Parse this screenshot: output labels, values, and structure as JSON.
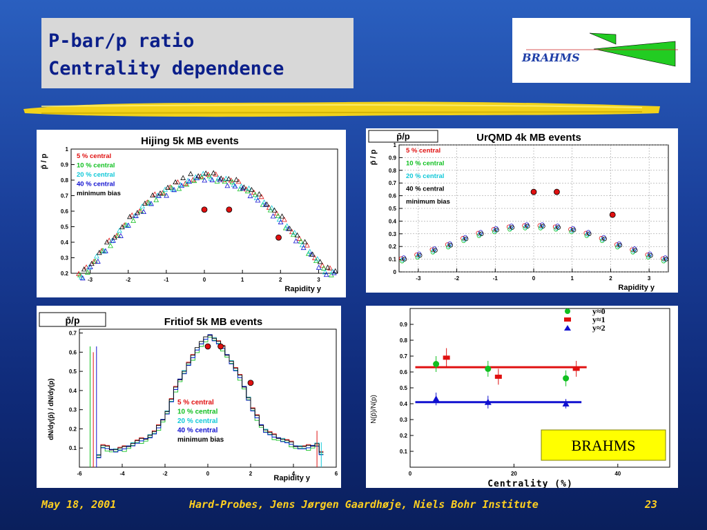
{
  "slide": {
    "title_line1": "P-bar/p ratio",
    "title_line2": "Centrality dependence",
    "logo_text": "BRAHMS",
    "footer_date": "May 18, 2001",
    "footer_center": "Hard-Probes, Jens Jørgen Gaardhøje, Niels Bohr Institute",
    "footer_page": "23"
  },
  "chart_data": [
    {
      "type": "scatter",
      "title": "Hijing 5k MB events",
      "xlabel": "Rapidity y",
      "ylabel": "p̄ / p",
      "xlim": [
        -3.5,
        3.5
      ],
      "ylim": [
        0.2,
        1.0
      ],
      "xticks": [
        -3,
        -2,
        -1,
        0,
        1,
        2,
        3
      ],
      "yticks": [
        0.2,
        0.3,
        0.4,
        0.5,
        0.6,
        0.7,
        0.8,
        0.9,
        1
      ],
      "legend": [
        {
          "name": "5 % central",
          "color": "#e01010"
        },
        {
          "name": "10 % central",
          "color": "#10c020"
        },
        {
          "name": "20 % central",
          "color": "#10c8d8"
        },
        {
          "name": "40 % central",
          "color": "#1010d0"
        },
        {
          "name": "minimum bias",
          "color": "#000000"
        }
      ],
      "curve": {
        "x": [
          -3.2,
          -2.8,
          -2.4,
          -2.0,
          -1.6,
          -1.2,
          -0.8,
          -0.4,
          0.0,
          0.4,
          0.8,
          1.2,
          1.6,
          2.0,
          2.4,
          2.8,
          3.2
        ],
        "y": [
          0.21,
          0.33,
          0.44,
          0.55,
          0.65,
          0.73,
          0.78,
          0.81,
          0.83,
          0.81,
          0.78,
          0.73,
          0.65,
          0.55,
          0.44,
          0.33,
          0.21
        ]
      },
      "brahms": {
        "x": [
          0.0,
          0.65,
          1.95
        ],
        "y": [
          0.61,
          0.61,
          0.43
        ]
      }
    },
    {
      "type": "scatter",
      "title": "UrQMD 4k MB events",
      "label_box": "p̄/p",
      "xlabel": "Rapidity y",
      "ylabel": "p̄ / p",
      "xlim": [
        -3.5,
        3.5
      ],
      "ylim": [
        0,
        1.0
      ],
      "xticks": [
        -3,
        -2,
        -1,
        0,
        1,
        2,
        3
      ],
      "yticks": [
        0,
        0.1,
        0.2,
        0.3,
        0.4,
        0.5,
        0.6,
        0.7,
        0.8,
        0.9,
        1
      ],
      "legend": [
        {
          "name": "5 % central",
          "color": "#e01010"
        },
        {
          "name": "10 % central",
          "color": "#10c020"
        },
        {
          "name": "20 % central",
          "color": "#10c8d8"
        },
        {
          "name": "40 % central",
          "color": "#000000"
        },
        {
          "name": "minimum bias",
          "color": "#000000"
        }
      ],
      "curve": {
        "x": [
          -3.4,
          -3.0,
          -2.6,
          -2.2,
          -1.8,
          -1.4,
          -1.0,
          -0.6,
          -0.2,
          0.2,
          0.6,
          1.0,
          1.4,
          1.8,
          2.2,
          2.6,
          3.0,
          3.4
        ],
        "y": [
          0.1,
          0.13,
          0.17,
          0.21,
          0.26,
          0.3,
          0.33,
          0.35,
          0.36,
          0.36,
          0.35,
          0.33,
          0.3,
          0.26,
          0.21,
          0.17,
          0.13,
          0.1
        ]
      },
      "brahms": {
        "x": [
          0.0,
          0.6,
          2.05
        ],
        "y": [
          0.63,
          0.63,
          0.45
        ]
      }
    },
    {
      "type": "line",
      "title": "Fritiof 5k MB events",
      "label_box": "p̄/p",
      "xlabel": "Rapidity y",
      "ylabel": "dN/dy(p̄) / dN/dy(p)",
      "xlim": [
        -6,
        6
      ],
      "ylim": [
        0,
        0.72
      ],
      "xticks": [
        -6,
        -4,
        -2,
        0,
        2,
        4,
        6
      ],
      "yticks": [
        0.1,
        0.2,
        0.3,
        0.4,
        0.5,
        0.6,
        0.7
      ],
      "legend": [
        {
          "name": "5 % central",
          "color": "#e01010"
        },
        {
          "name": "10 % central",
          "color": "#10c020"
        },
        {
          "name": "20 % central",
          "color": "#10c8d8"
        },
        {
          "name": "40 % central",
          "color": "#1010d0"
        },
        {
          "name": "minimum bias",
          "color": "#000000"
        }
      ],
      "curve": {
        "x": [
          -5.5,
          -5.0,
          -4.5,
          -4.0,
          -3.5,
          -3.0,
          -2.5,
          -2.0,
          -1.5,
          -1.0,
          -0.5,
          0.0,
          0.5,
          1.0,
          1.5,
          2.0,
          2.5,
          3.0,
          3.5,
          4.0,
          4.5,
          5.0,
          5.5
        ],
        "y": [
          0.0,
          0.12,
          0.1,
          0.11,
          0.14,
          0.16,
          0.2,
          0.3,
          0.45,
          0.55,
          0.64,
          0.69,
          0.64,
          0.55,
          0.45,
          0.3,
          0.2,
          0.16,
          0.14,
          0.11,
          0.1,
          0.12,
          0.0
        ]
      },
      "brahms": {
        "x": [
          0.0,
          0.6,
          2.0
        ],
        "y": [
          0.63,
          0.63,
          0.44
        ]
      }
    },
    {
      "type": "scatter",
      "title": "",
      "xlabel": "Centrality (%)",
      "ylabel": "N(p̄)/N(p)",
      "xlim": [
        0,
        50
      ],
      "ylim": [
        0,
        1.0
      ],
      "xticks": [
        0,
        20,
        40
      ],
      "yticks": [
        0.1,
        0.2,
        0.3,
        0.4,
        0.5,
        0.6,
        0.7,
        0.8,
        0.9
      ],
      "stamp": "BRAHMS",
      "series": [
        {
          "name": "y≈0",
          "color": "#10c020",
          "marker": "circle",
          "x": [
            5,
            15,
            30
          ],
          "y": [
            0.65,
            0.62,
            0.56
          ],
          "err": [
            0.05,
            0.05,
            0.05
          ]
        },
        {
          "name": "y≈1",
          "color": "#e01010",
          "marker": "square",
          "x": [
            7,
            17,
            32
          ],
          "y": [
            0.69,
            0.57,
            0.62
          ],
          "err": [
            0.06,
            0.05,
            0.05
          ]
        },
        {
          "name": "y≈2",
          "color": "#1010d0",
          "marker": "triangle",
          "x": [
            5,
            15,
            30
          ],
          "y": [
            0.43,
            0.41,
            0.4
          ],
          "err": [
            0.04,
            0.04,
            0.03
          ]
        }
      ],
      "fit_lines": [
        {
          "color": "#e01010",
          "y": 0.63,
          "x": [
            1,
            34
          ]
        },
        {
          "color": "#1010d0",
          "y": 0.41,
          "x": [
            1,
            33
          ]
        }
      ]
    }
  ]
}
